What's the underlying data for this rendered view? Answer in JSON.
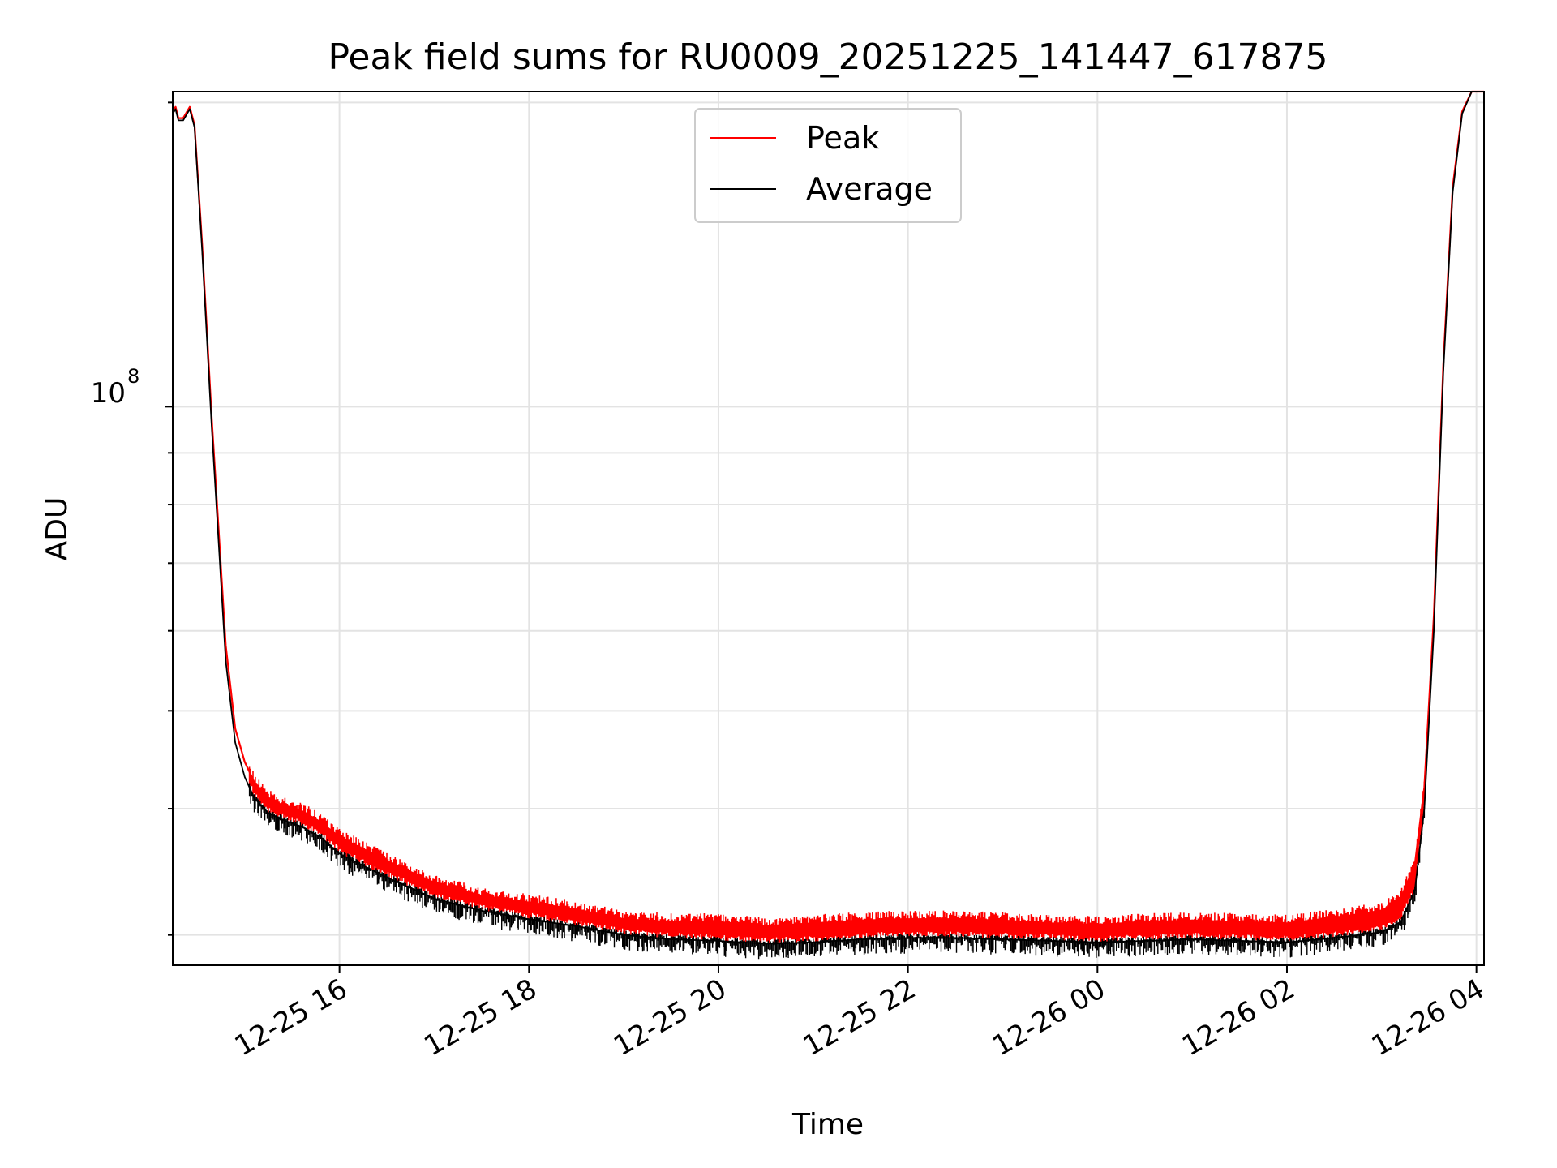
{
  "chart_data": {
    "type": "line",
    "title": "Peak field sums for RU0009_20251225_141447_617875",
    "xlabel": "Time",
    "ylabel": "ADU",
    "yscale": "log",
    "ytick_base": "10",
    "ytick_exponent": "8",
    "ylim": [
      28000000,
      205000000
    ],
    "xlim_hours": [
      14.24,
      28.08
    ],
    "x_ticks": [
      {
        "hour": 16,
        "label": "12-25 16"
      },
      {
        "hour": 18,
        "label": "12-25 18"
      },
      {
        "hour": 20,
        "label": "12-25 20"
      },
      {
        "hour": 22,
        "label": "12-25 22"
      },
      {
        "hour": 24,
        "label": "12-26 00"
      },
      {
        "hour": 26,
        "label": "12-26 02"
      },
      {
        "hour": 28,
        "label": "12-26 04"
      }
    ],
    "y_major_ticks": [
      100000000
    ],
    "y_minor_ticks": [
      30000000,
      40000000,
      50000000,
      60000000,
      70000000,
      80000000,
      90000000,
      200000000
    ],
    "legend_position": "upper center",
    "series": [
      {
        "name": "Peak",
        "color": "#ff0000",
        "x_hours": [
          14.24,
          14.27,
          14.3,
          14.35,
          14.42,
          14.47,
          14.55,
          14.65,
          14.8,
          14.9,
          15.0,
          15.1,
          15.25,
          15.4,
          15.6,
          15.8,
          16.0,
          16.5,
          17.0,
          17.5,
          18.0,
          18.5,
          19.0,
          19.5,
          20.0,
          20.5,
          21.0,
          21.5,
          22.0,
          22.5,
          23.0,
          23.5,
          24.0,
          24.5,
          25.0,
          25.5,
          26.0,
          26.5,
          27.0,
          27.2,
          27.35,
          27.45,
          27.55,
          27.65,
          27.75,
          27.85,
          27.95,
          28.08
        ],
        "values": [
          196000000,
          198000000,
          193000000,
          193000000,
          198000000,
          190000000,
          145000000,
          98000000,
          58000000,
          48000000,
          44500000,
          42500000,
          41000000,
          40300000,
          39800000,
          38800000,
          37500000,
          35500000,
          33800000,
          32800000,
          32300000,
          31800000,
          31100000,
          30900000,
          30900000,
          30600000,
          30800000,
          31000000,
          31100000,
          31100000,
          31000000,
          30800000,
          30700000,
          30900000,
          31000000,
          30900000,
          30800000,
          31200000,
          31700000,
          32600000,
          35200000,
          42000000,
          62000000,
          110000000,
          165000000,
          196000000,
          205000000,
          205000000
        ]
      },
      {
        "name": "Average",
        "color": "#000000",
        "x_hours": [
          14.24,
          14.27,
          14.3,
          14.35,
          14.42,
          14.47,
          14.55,
          14.65,
          14.8,
          14.9,
          15.0,
          15.1,
          15.25,
          15.4,
          15.6,
          15.8,
          16.0,
          16.5,
          17.0,
          17.5,
          18.0,
          18.5,
          19.0,
          19.5,
          20.0,
          20.5,
          21.0,
          21.5,
          22.0,
          22.5,
          23.0,
          23.5,
          24.0,
          24.5,
          25.0,
          25.5,
          26.0,
          26.5,
          27.0,
          27.2,
          27.35,
          27.45,
          27.55,
          27.65,
          27.75,
          27.85,
          27.95,
          28.08
        ],
        "values": [
          195000000,
          197000000,
          192000000,
          192000000,
          197000000,
          189000000,
          143000000,
          96000000,
          56000000,
          46500000,
          43000000,
          41000000,
          39600000,
          39000000,
          38400000,
          37500000,
          36100000,
          34200000,
          32600000,
          31700000,
          31100000,
          30600000,
          30000000,
          29700000,
          29600000,
          29400000,
          29500000,
          29700000,
          29800000,
          29800000,
          29700000,
          29600000,
          29500000,
          29600000,
          29700000,
          29600000,
          29500000,
          29800000,
          30200000,
          30900000,
          33200000,
          40000000,
          60000000,
          108000000,
          163000000,
          195000000,
          205000000,
          205000000
        ]
      }
    ]
  }
}
